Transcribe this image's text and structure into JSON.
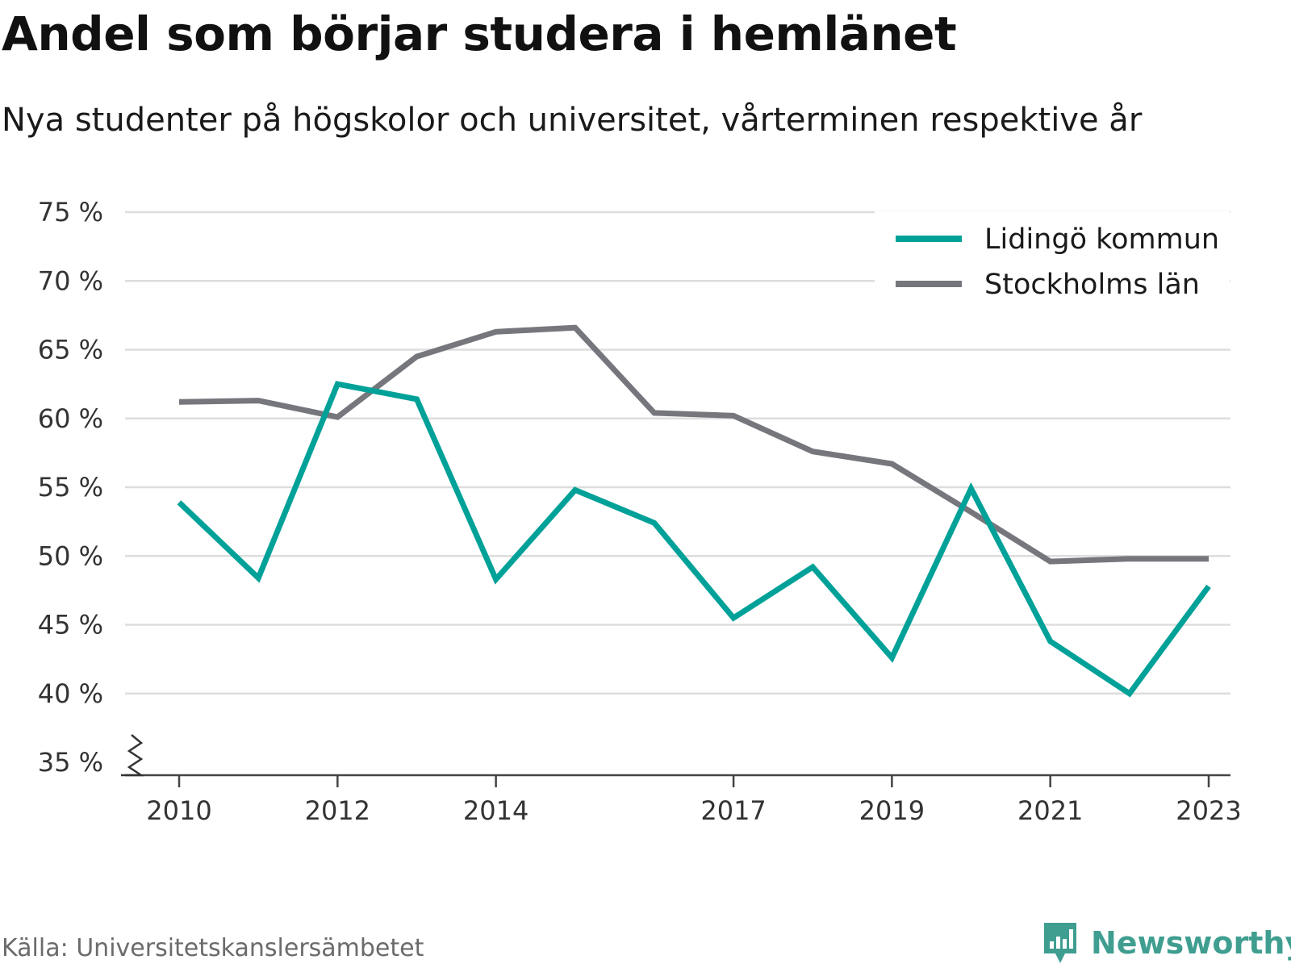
{
  "title": "Andel som börjar studera i hemlänet",
  "subtitle": "Nya studenter på högskolor och universitet, vårterminen respektive år",
  "source": "Källa: Universitetskanslersämbetet",
  "brand": {
    "name": "Newsworthy",
    "icon": "newsworthy-logo-icon",
    "color": "#3f9e90"
  },
  "chart_data": {
    "type": "line",
    "title": "Andel som börjar studera i hemlänet",
    "subtitle": "Nya studenter på högskolor och universitet, vårterminen respektive år",
    "x": [
      2010,
      2011,
      2012,
      2013,
      2014,
      2015,
      2016,
      2017,
      2018,
      2019,
      2020,
      2021,
      2022,
      2023
    ],
    "x_ticks": [
      2010,
      2012,
      2014,
      2017,
      2019,
      2021,
      2023
    ],
    "x_tick_labels": [
      "2010",
      "2012",
      "2014",
      "2017",
      "2019",
      "2021",
      "2023"
    ],
    "y_ticks": [
      35,
      40,
      45,
      50,
      55,
      60,
      65,
      70,
      75
    ],
    "y_tick_labels": [
      "35 %",
      "40 %",
      "45 %",
      "50 %",
      "55 %",
      "60 %",
      "65 %",
      "70 %",
      "75 %"
    ],
    "ylim": [
      35,
      75
    ],
    "y_axis_break": true,
    "grid": "horizontal",
    "legend_position": "top-right",
    "series": [
      {
        "name": "Lidingö kommun",
        "color": "#00a198",
        "values": [
          53.9,
          48.4,
          62.5,
          61.4,
          48.3,
          54.8,
          52.4,
          45.5,
          49.2,
          42.6,
          54.9,
          43.8,
          40.0,
          47.8
        ]
      },
      {
        "name": "Stockholms län",
        "color": "#76767d",
        "values": [
          61.2,
          61.3,
          60.1,
          64.5,
          66.3,
          66.6,
          60.4,
          60.2,
          57.6,
          56.7,
          53.2,
          49.6,
          49.8,
          49.8
        ]
      }
    ]
  }
}
